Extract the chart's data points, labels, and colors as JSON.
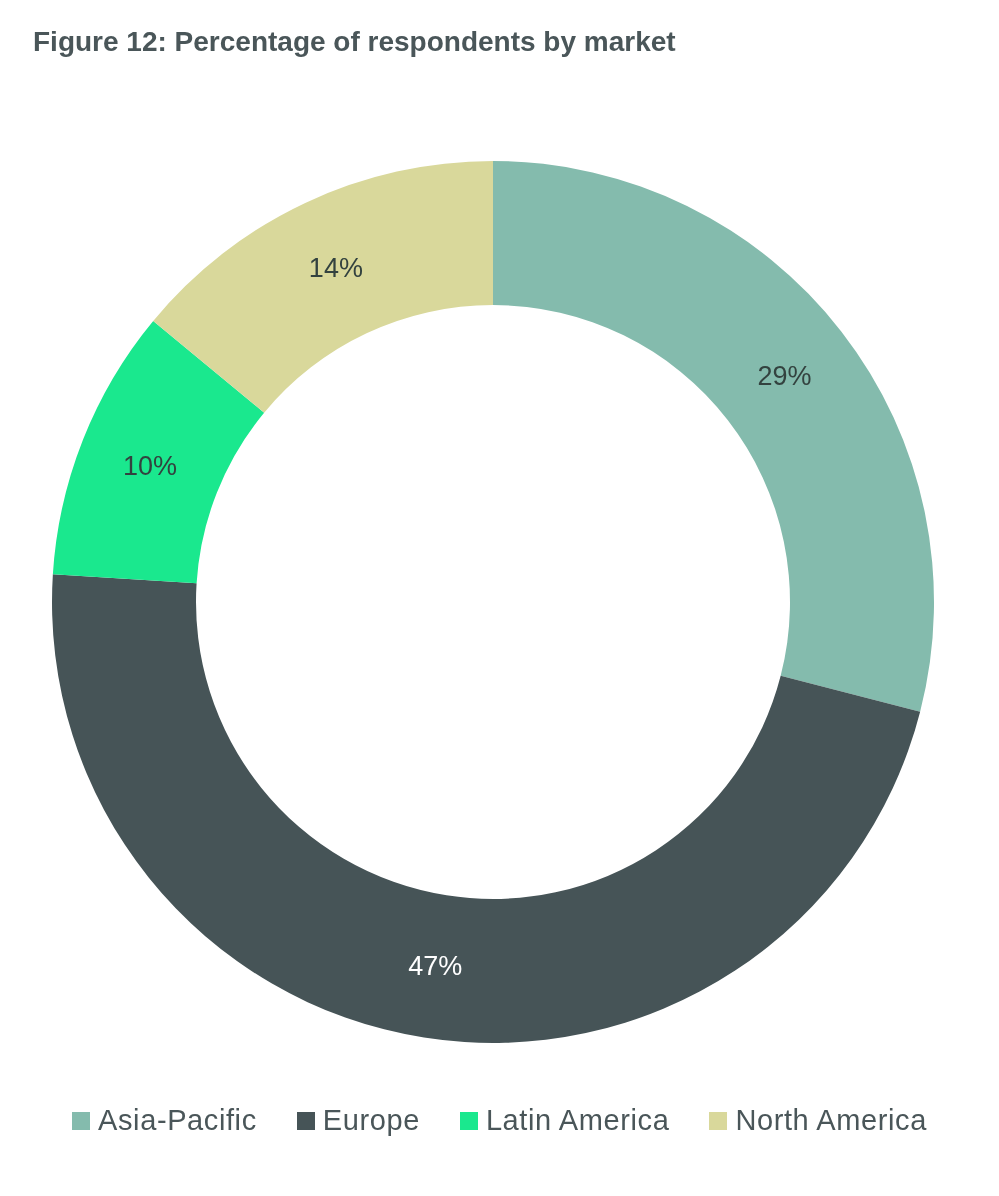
{
  "chart_data": {
    "type": "donut",
    "title": "Figure 12: Percentage of respondents by market",
    "categories": [
      "Asia-Pacific",
      "Europe",
      "Latin America",
      "North America"
    ],
    "values": [
      29,
      47,
      10,
      14
    ],
    "value_labels": [
      "29%",
      "47%",
      "10%",
      "14%"
    ],
    "colors": [
      "#84bbad",
      "#465457",
      "#1ae88e",
      "#d9d89b"
    ],
    "legend": "bottom"
  }
}
